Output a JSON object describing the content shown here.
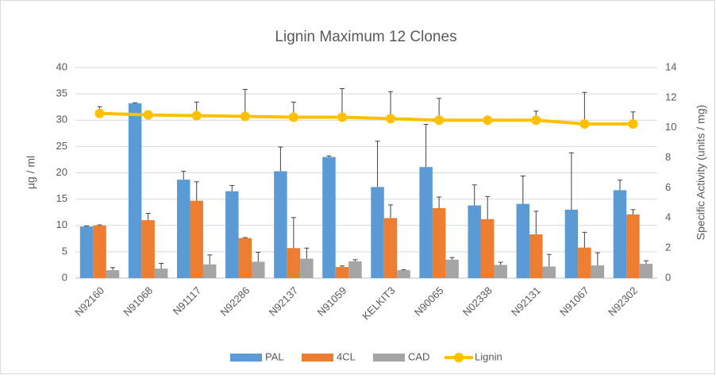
{
  "chart_data": {
    "type": "bar",
    "title": "Lignin Maximum 12 Clones",
    "y_label": "µg / ml",
    "y2_label": "Specific Activity (units / mg)",
    "categories": [
      "N92160",
      "N91068",
      "N91117",
      "N92286",
      "N92137",
      "N91059",
      "KELKIT3",
      "N90065",
      "N02338",
      "N92131",
      "N91067",
      "N92302"
    ],
    "series": [
      {
        "name": "PAL",
        "color": "#5b9bd5",
        "type": "bar",
        "values": [
          9.8,
          33.2,
          18.7,
          16.5,
          20.3,
          23.0,
          17.3,
          21.1,
          13.8,
          14.1,
          13.0,
          16.7
        ],
        "errors": [
          0.1,
          0.1,
          1.6,
          1.1,
          4.6,
          0.2,
          8.7,
          8.1,
          3.9,
          5.3,
          10.8,
          1.9
        ]
      },
      {
        "name": "4CL",
        "color": "#ed7d31",
        "type": "bar",
        "values": [
          10.0,
          11.0,
          14.7,
          7.6,
          5.7,
          2.1,
          11.4,
          13.3,
          11.2,
          8.3,
          5.8,
          12.1
        ],
        "errors": [
          0.1,
          1.3,
          3.6,
          0.1,
          5.8,
          0.2,
          2.5,
          2.1,
          4.3,
          4.4,
          2.9,
          0.9
        ]
      },
      {
        "name": "CAD",
        "color": "#a5a5a5",
        "type": "bar",
        "values": [
          1.5,
          1.8,
          2.6,
          3.1,
          3.7,
          3.2,
          1.5,
          3.5,
          2.5,
          2.2,
          2.4,
          2.7
        ],
        "errors": [
          0.5,
          1.0,
          1.8,
          1.8,
          2.0,
          0.3,
          0.1,
          0.4,
          0.5,
          2.3,
          2.4,
          0.6
        ]
      },
      {
        "name": "Lignin",
        "color": "#ffc000",
        "type": "line",
        "axis": "y2",
        "values": [
          10.95,
          10.85,
          10.8,
          10.75,
          10.7,
          10.7,
          10.6,
          10.5,
          10.5,
          10.5,
          10.25,
          10.25
        ],
        "errors": [
          0.45,
          null,
          0.9,
          1.8,
          1.0,
          1.9,
          1.8,
          1.45,
          null,
          0.6,
          2.1,
          0.8
        ]
      }
    ],
    "ylim": [
      0,
      40
    ],
    "yticks": [
      0,
      5,
      10,
      15,
      20,
      25,
      30,
      35,
      40
    ],
    "y2lim": [
      0,
      14
    ],
    "y2ticks": [
      0,
      2,
      4,
      6,
      8,
      10,
      12,
      14
    ],
    "grid": true,
    "legend": "bottom"
  }
}
